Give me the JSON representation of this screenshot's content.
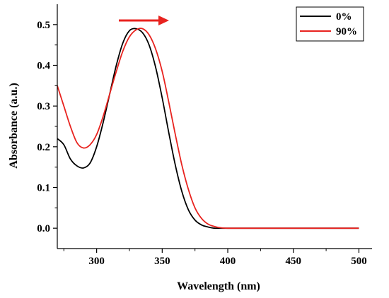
{
  "chart_data": {
    "type": "line",
    "title": "",
    "xlabel": "Wavelength (nm)",
    "ylabel": "Absorbance (a.u.)",
    "xlim": [
      270,
      510
    ],
    "ylim": [
      -0.05,
      0.55
    ],
    "x_ticks": [
      300,
      350,
      400,
      450,
      500
    ],
    "x_tick_labels": [
      "300",
      "350",
      "400",
      "450",
      "500"
    ],
    "y_ticks": [
      0.0,
      0.1,
      0.2,
      0.3,
      0.4,
      0.5
    ],
    "y_tick_labels": [
      "0.0",
      "0.1",
      "0.2",
      "0.3",
      "0.4",
      "0.5"
    ],
    "grid": false,
    "legend_position": "top-right",
    "annotation": "red arrow pointing right above the peaks (red shift)",
    "series": [
      {
        "name": "0%",
        "color": "#000000",
        "x": [
          270,
          275,
          280,
          285,
          290,
          295,
          300,
          305,
          310,
          315,
          320,
          325,
          330,
          335,
          340,
          345,
          350,
          355,
          360,
          365,
          370,
          375,
          380,
          385,
          390,
          395,
          400,
          410,
          420,
          450,
          500
        ],
        "y": [
          0.22,
          0.205,
          0.17,
          0.153,
          0.148,
          0.16,
          0.2,
          0.26,
          0.33,
          0.4,
          0.455,
          0.485,
          0.49,
          0.48,
          0.45,
          0.395,
          0.32,
          0.235,
          0.155,
          0.09,
          0.045,
          0.02,
          0.008,
          0.003,
          0.0,
          0.0,
          0.0,
          0.0,
          0.0,
          0.0,
          0.0
        ]
      },
      {
        "name": "90%",
        "color": "#e8231f",
        "x": [
          270,
          275,
          280,
          285,
          290,
          295,
          300,
          305,
          310,
          315,
          320,
          325,
          330,
          335,
          340,
          345,
          350,
          355,
          360,
          365,
          370,
          375,
          380,
          385,
          390,
          395,
          400,
          410,
          420,
          450,
          500
        ],
        "y": [
          0.35,
          0.3,
          0.25,
          0.21,
          0.197,
          0.205,
          0.23,
          0.275,
          0.33,
          0.385,
          0.435,
          0.47,
          0.487,
          0.49,
          0.475,
          0.44,
          0.385,
          0.31,
          0.23,
          0.155,
          0.095,
          0.05,
          0.024,
          0.01,
          0.004,
          0.001,
          0.0,
          0.0,
          0.0,
          0.0,
          0.0
        ]
      }
    ]
  }
}
